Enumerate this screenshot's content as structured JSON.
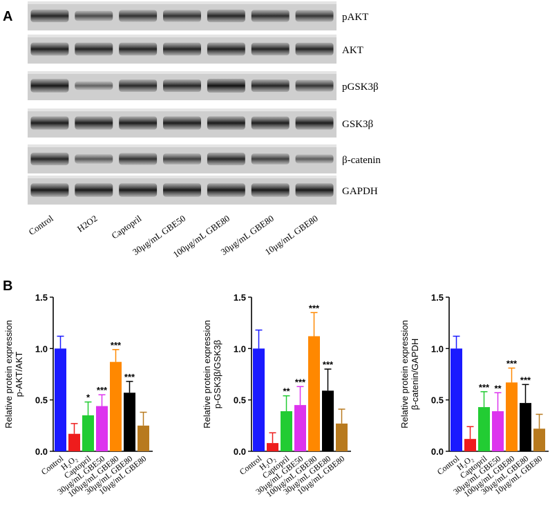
{
  "panel_labels": {
    "a": "A",
    "b": "B"
  },
  "blot": {
    "bands": [
      "pAKT",
      "AKT",
      "pGSK3β",
      "GSK3β",
      "β-catenin",
      "GAPDH"
    ],
    "lanes": [
      "Control",
      "H2O2",
      "Captopril",
      "30μg/mL GBE50",
      "100μg/mL GBE80",
      "30μg/mL GBE80",
      "10μg/mL GBE80"
    ],
    "intensity": [
      [
        0.85,
        0.55,
        0.75,
        0.75,
        0.85,
        0.78,
        0.72
      ],
      [
        0.9,
        0.88,
        0.88,
        0.88,
        0.9,
        0.86,
        0.86
      ],
      [
        0.95,
        0.35,
        0.82,
        0.84,
        1.0,
        0.84,
        0.72
      ],
      [
        0.92,
        0.92,
        0.92,
        0.92,
        0.94,
        0.9,
        0.92
      ],
      [
        0.85,
        0.45,
        0.75,
        0.65,
        0.85,
        0.65,
        0.4
      ],
      [
        0.95,
        0.95,
        0.95,
        0.95,
        0.95,
        0.95,
        0.95
      ]
    ]
  },
  "chart_data": [
    {
      "type": "bar",
      "ylabel": "Relative protein expression",
      "ylabel2": "p-AKT/AKT",
      "categories": [
        "Control",
        "H₂O₂",
        "Captopril",
        "30μg/mL GBE50",
        "100μg/mL GBE80",
        "30μg/mL GBE80",
        "10μg/mL GBE80"
      ],
      "values": [
        1.0,
        0.17,
        0.35,
        0.44,
        0.87,
        0.57,
        0.25
      ],
      "errors": [
        0.12,
        0.1,
        0.13,
        0.11,
        0.12,
        0.11,
        0.13
      ],
      "significance": [
        "",
        "",
        "*",
        "***",
        "***",
        "***",
        ""
      ],
      "colors": [
        "#1a1aff",
        "#ee1c1c",
        "#22cc33",
        "#dd33ee",
        "#ff8800",
        "#000000",
        "#b87a1e"
      ],
      "ylim": [
        0,
        1.5
      ],
      "yticks": [
        "0.0",
        "0.5",
        "1.0",
        "1.5"
      ]
    },
    {
      "type": "bar",
      "ylabel": "Relative protein expression",
      "ylabel2": "p-GSK3β/GSK3β",
      "categories": [
        "Control",
        "H₂O₂",
        "Captopril",
        "30μg/mL GBE50",
        "100μg/mL GBE80",
        "30μg/mL GBE80",
        "10μg/mL GBE80"
      ],
      "values": [
        1.0,
        0.08,
        0.39,
        0.45,
        1.12,
        0.59,
        0.27
      ],
      "errors": [
        0.18,
        0.1,
        0.15,
        0.18,
        0.23,
        0.21,
        0.14
      ],
      "significance": [
        "",
        "",
        "**",
        "***",
        "***",
        "***",
        ""
      ],
      "colors": [
        "#1a1aff",
        "#ee1c1c",
        "#22cc33",
        "#dd33ee",
        "#ff8800",
        "#000000",
        "#b87a1e"
      ],
      "ylim": [
        0,
        1.5
      ],
      "yticks": [
        "0.0",
        "0.5",
        "1.0",
        "1.5"
      ]
    },
    {
      "type": "bar",
      "ylabel": "Relative protein expression",
      "ylabel2": "β-catenin/GAPDH",
      "categories": [
        "Control",
        "H₂O₂",
        "Captopril",
        "30μg/mL GBE50",
        "100μg/mL GBE80",
        "30μg/mL GBE80",
        "10μg/mL GBE80"
      ],
      "values": [
        1.0,
        0.12,
        0.43,
        0.39,
        0.67,
        0.47,
        0.22
      ],
      "errors": [
        0.12,
        0.12,
        0.15,
        0.18,
        0.14,
        0.18,
        0.14
      ],
      "significance": [
        "",
        "",
        "***",
        "**",
        "***",
        "***",
        ""
      ],
      "colors": [
        "#1a1aff",
        "#ee1c1c",
        "#22cc33",
        "#dd33ee",
        "#ff8800",
        "#000000",
        "#b87a1e"
      ],
      "ylim": [
        0,
        1.5
      ],
      "yticks": [
        "0.0",
        "0.5",
        "1.0",
        "1.5"
      ]
    }
  ]
}
